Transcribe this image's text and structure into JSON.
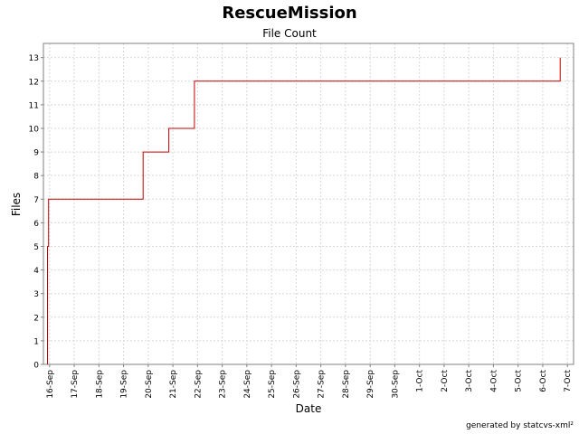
{
  "chart_data": {
    "type": "line",
    "title": "RescueMission",
    "subtitle": "File Count",
    "xlabel": "Date",
    "ylabel": "Files",
    "ylim": [
      0,
      13.6
    ],
    "yticks": [
      0,
      1,
      2,
      3,
      4,
      5,
      6,
      7,
      8,
      9,
      10,
      11,
      12,
      13
    ],
    "grid": true,
    "step": true,
    "color": "#c00000",
    "xtick_labels": [
      "16-Sep",
      "17-Sep",
      "18-Sep",
      "19-Sep",
      "20-Sep",
      "21-Sep",
      "22-Sep",
      "23-Sep",
      "24-Sep",
      "25-Sep",
      "26-Sep",
      "27-Sep",
      "28-Sep",
      "29-Sep",
      "30-Sep",
      "1-Oct",
      "2-Oct",
      "3-Oct",
      "4-Oct",
      "5-Oct",
      "6-Oct",
      "7-Oct"
    ],
    "xrange": [
      "2006-09-15T18:00",
      "2006-10-07T06:00"
    ],
    "points": [
      {
        "x": "2006-09-15T22:00",
        "y": 0
      },
      {
        "x": "2006-09-15T22:00",
        "y": 5
      },
      {
        "x": "2006-09-15T23:00",
        "y": 5
      },
      {
        "x": "2006-09-15T23:00",
        "y": 7
      },
      {
        "x": "2006-09-19T19:00",
        "y": 7
      },
      {
        "x": "2006-09-19T19:00",
        "y": 9
      },
      {
        "x": "2006-09-20T20:00",
        "y": 9
      },
      {
        "x": "2006-09-20T20:00",
        "y": 10
      },
      {
        "x": "2006-09-21T21:00",
        "y": 10
      },
      {
        "x": "2006-09-21T21:00",
        "y": 12
      },
      {
        "x": "2006-10-06T17:00",
        "y": 12
      },
      {
        "x": "2006-10-06T17:00",
        "y": 13
      }
    ]
  },
  "footer": "generated by statcvs-xml²"
}
